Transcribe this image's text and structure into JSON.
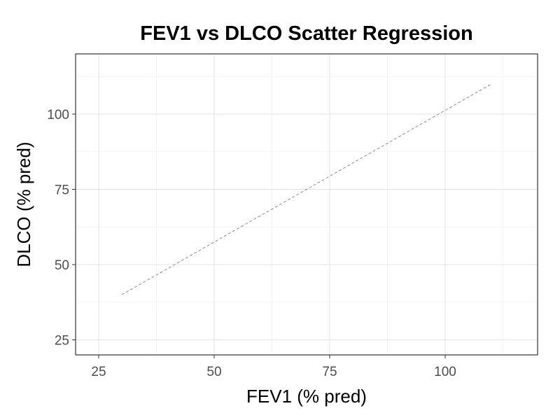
{
  "chart_data": {
    "type": "line",
    "title": "FEV1 vs DLCO Scatter Regression",
    "xlabel": "FEV1 (% pred)",
    "ylabel": "DLCO (% pred)",
    "xlim": [
      20,
      120
    ],
    "ylim": [
      20,
      120
    ],
    "x_ticks": [
      25,
      50,
      75,
      100
    ],
    "y_ticks": [
      25,
      50,
      75,
      100
    ],
    "grid": true,
    "series": [
      {
        "style": "dashed",
        "color": "#7f7f7f",
        "x": [
          30,
          110
        ],
        "y": [
          40,
          110
        ]
      }
    ]
  }
}
